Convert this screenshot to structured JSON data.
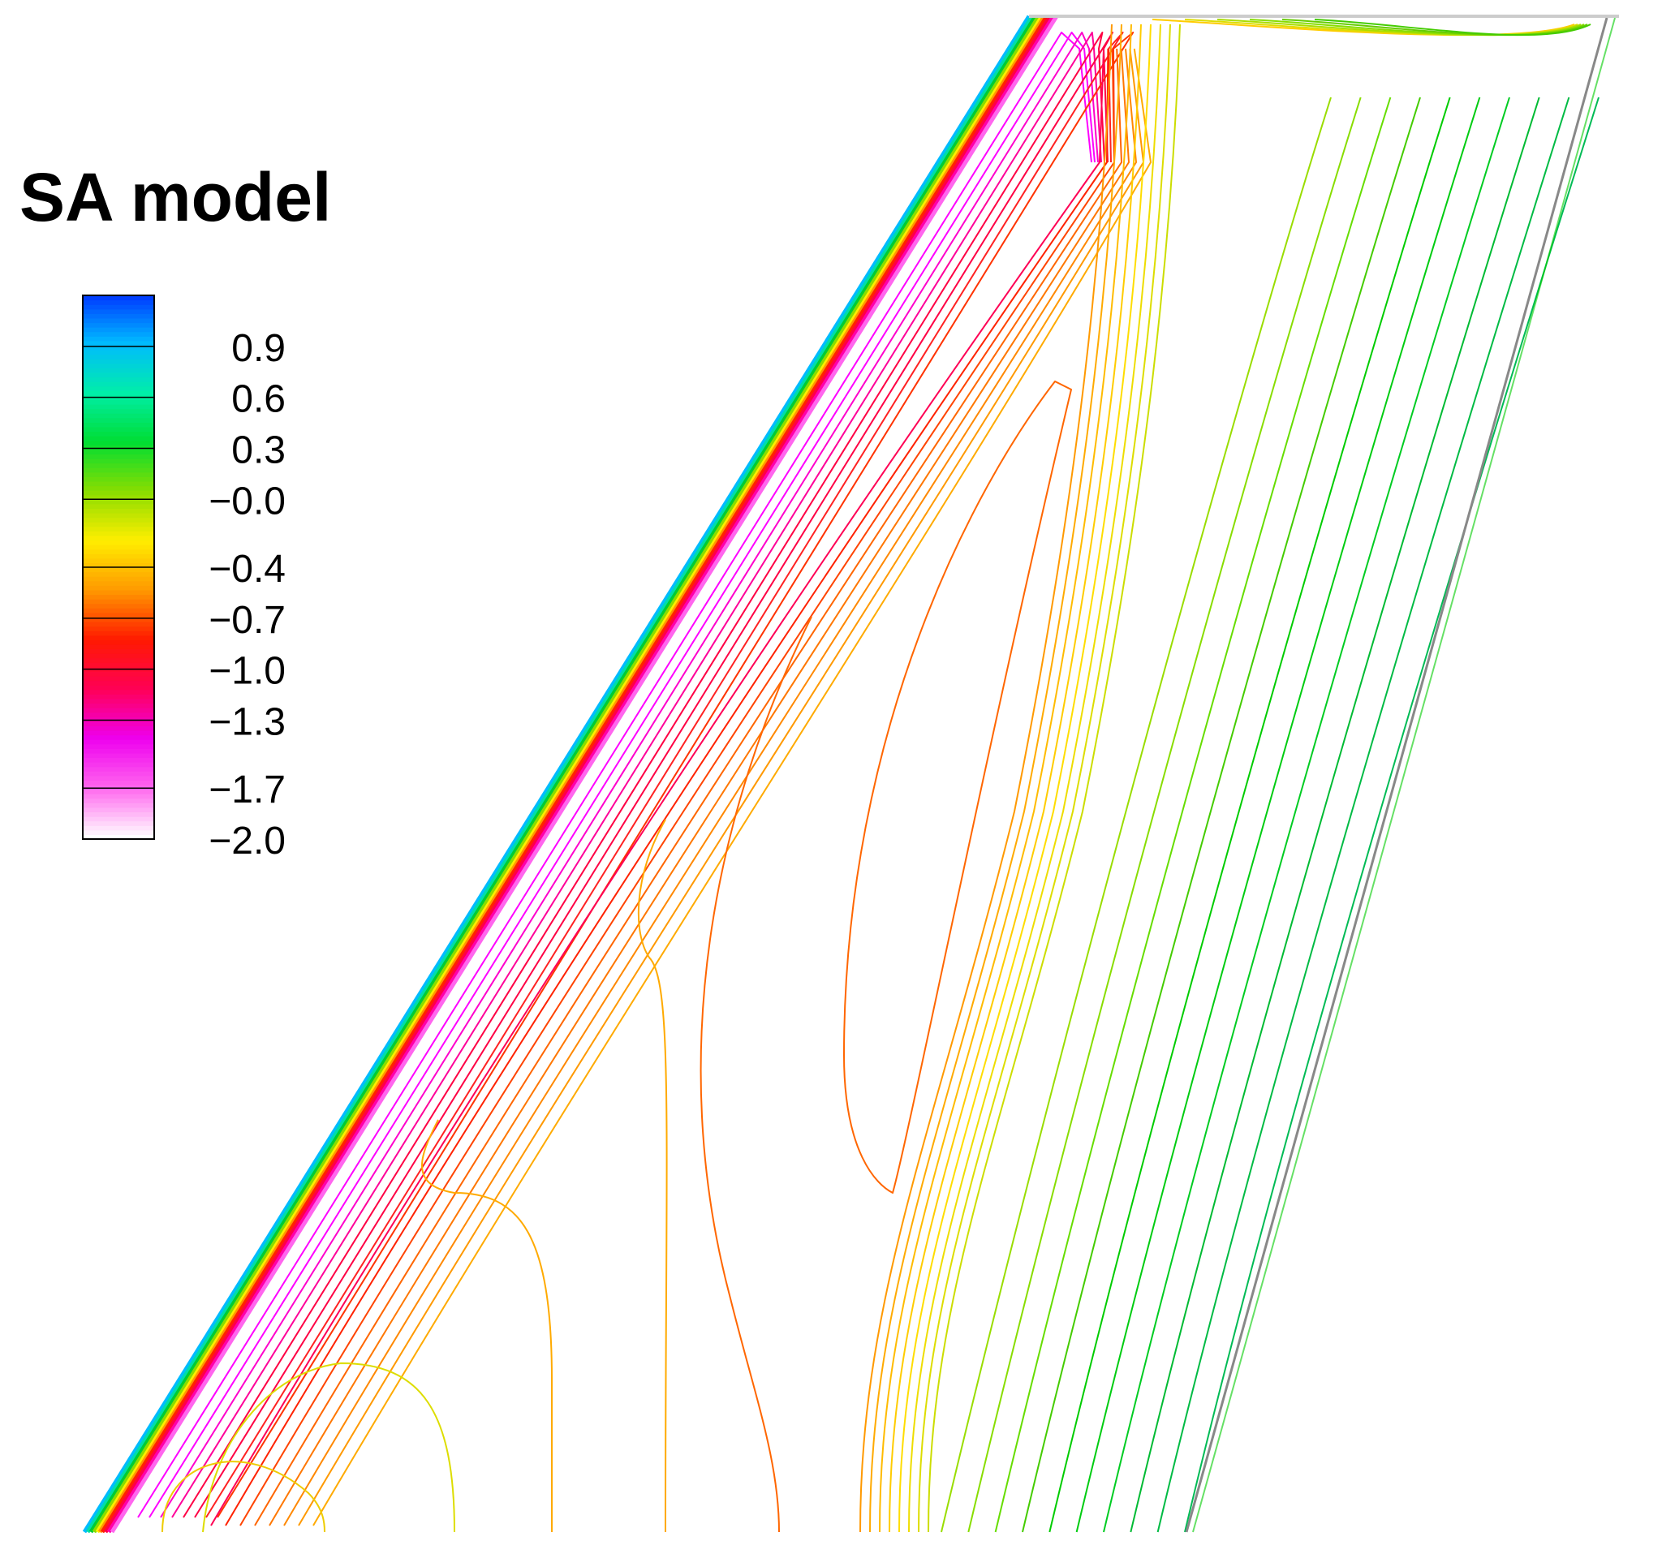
{
  "chart_data": {
    "type": "contour",
    "title": "SA model",
    "colorbar": {
      "tick_labels": [
        "0.9",
        "0.6",
        "0.3",
        "−0.0",
        "−0.4",
        "−0.7",
        "−1.0",
        "−1.3",
        "−1.7",
        "−2.0"
      ],
      "tick_values": [
        0.9,
        0.6,
        0.3,
        -0.0,
        -0.4,
        -0.7,
        -1.0,
        -1.3,
        -1.7,
        -2.0
      ],
      "range": [
        -2.0,
        1.2
      ],
      "levels": [
        -2.0,
        -1.7,
        -1.3,
        -1.0,
        -0.7,
        -0.4,
        -0.0,
        0.3,
        0.6,
        0.9,
        1.2
      ],
      "colors": [
        "#ffffff",
        "#ff66ee",
        "#ee00ee",
        "#ff0055",
        "#ff1a00",
        "#ff9900",
        "#ffee00",
        "#88dd00",
        "#00dd33",
        "#00eeaa",
        "#00bbff",
        "#0033ff"
      ],
      "placement": "left"
    },
    "contour_colors": {
      "most_negative": "#ff00ff",
      "negative_high": "#ff0044",
      "negative_mid": "#ff6600",
      "negative_low": "#ffaa00",
      "near_zero": "#dddd00",
      "zero": "#99dd00",
      "positive": "#00cc00"
    }
  }
}
